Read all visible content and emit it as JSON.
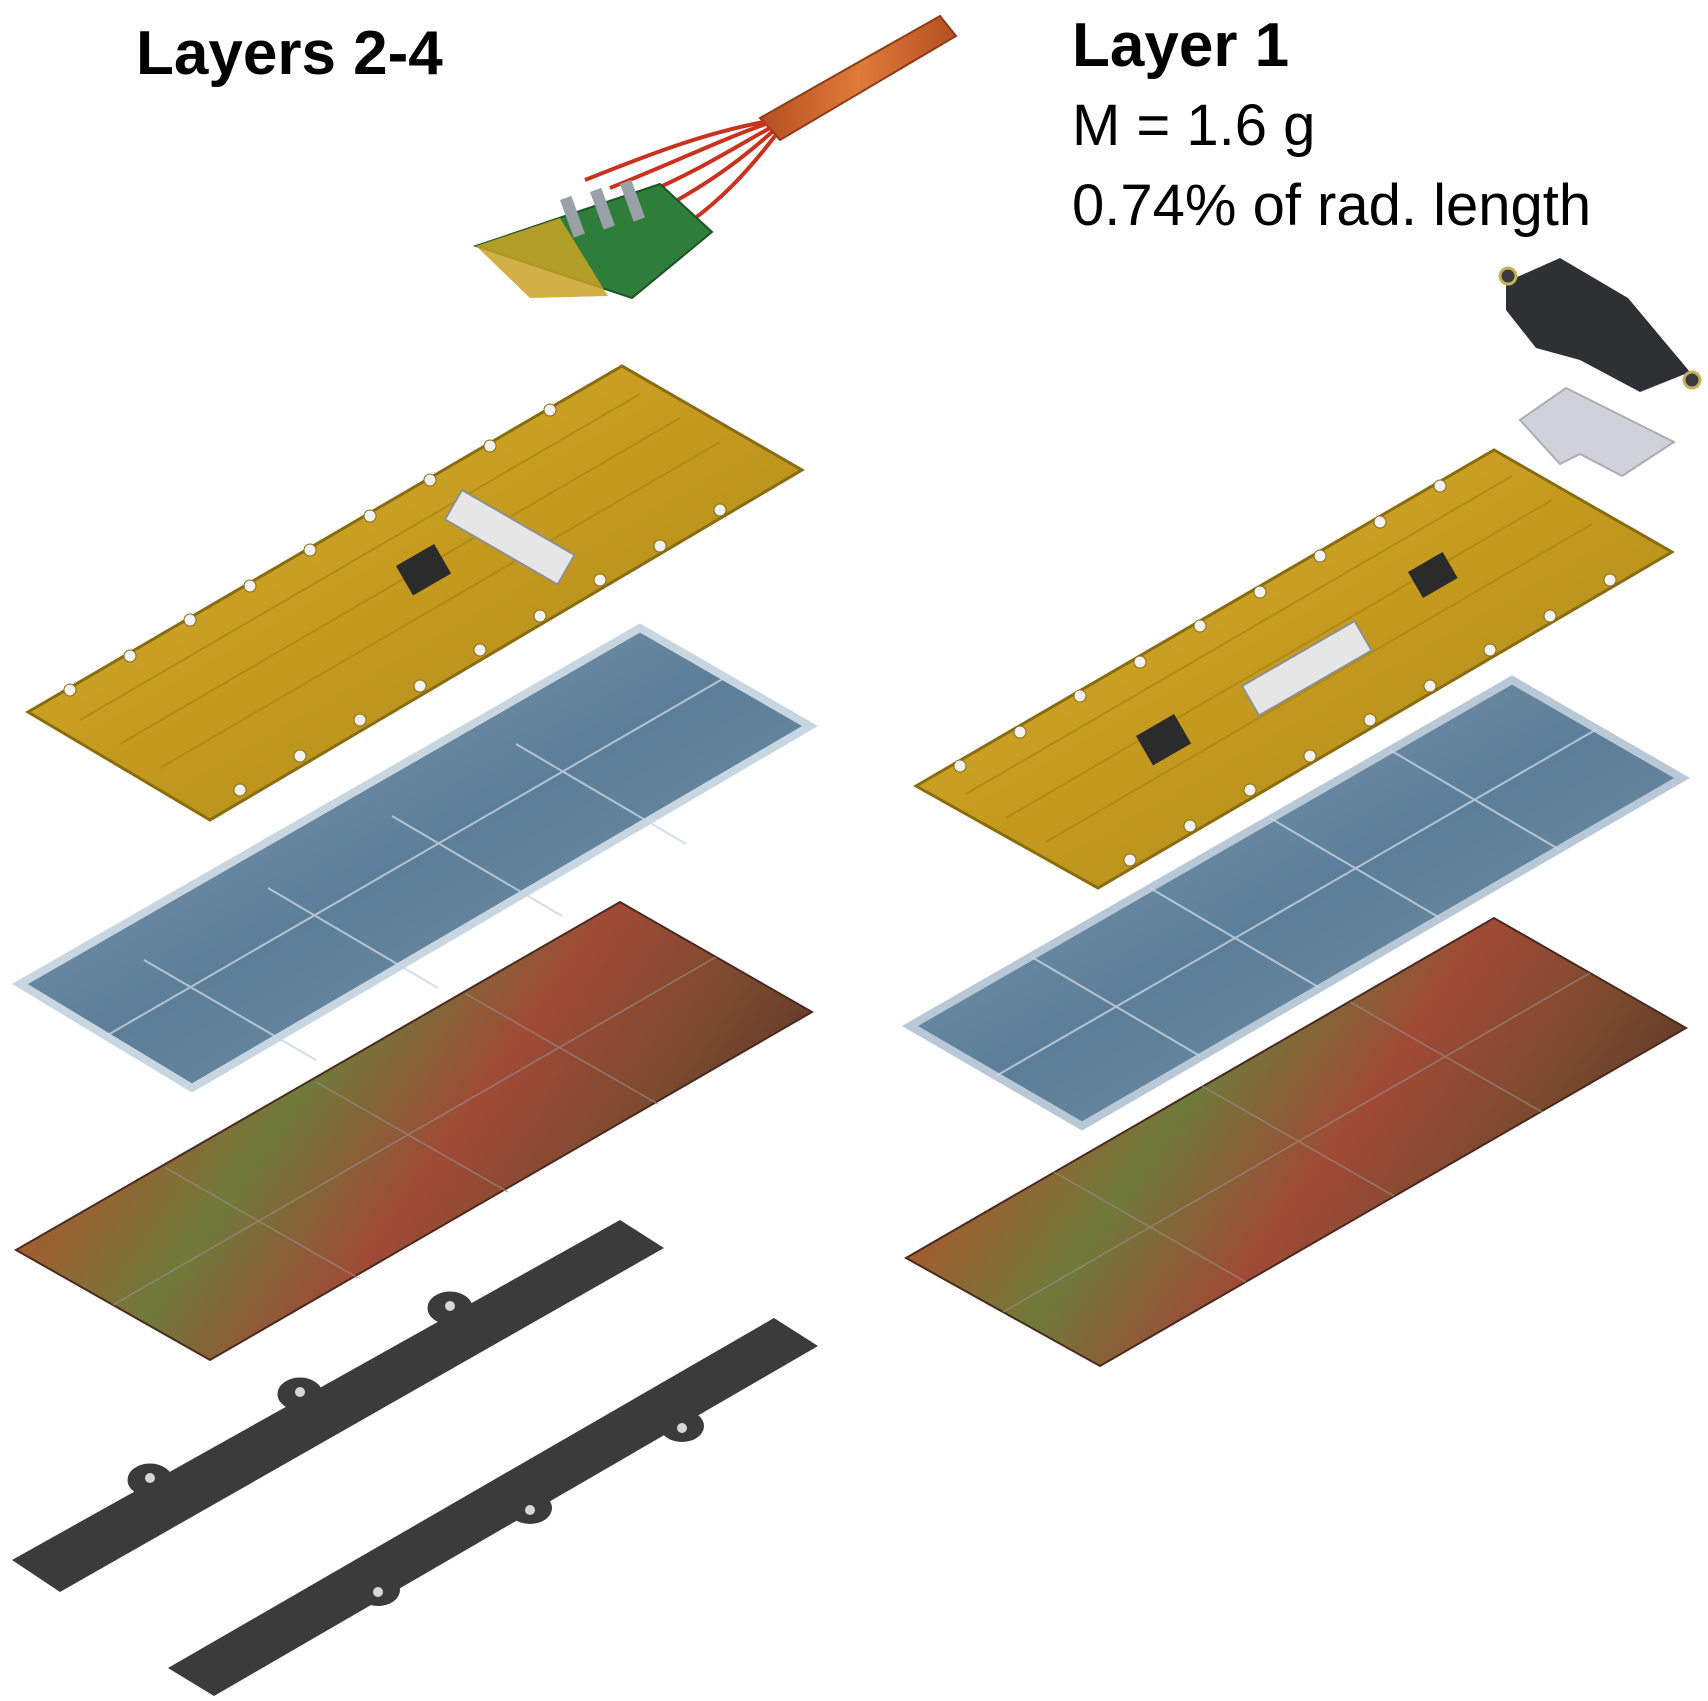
{
  "labels": {
    "left_title": "Layers 2-4",
    "right_title": "Layer 1",
    "right_mass": "M = 1.6 g",
    "right_rad_length": "0.74% of rad. length"
  },
  "colors": {
    "flex_pcb": "#c9a227",
    "flex_pcb_dark": "#8a6c10",
    "glass_plate": "#5f7f97",
    "glass_edge": "#c8d6e2",
    "sensor": "#8a4b2c",
    "support_bar": "#3b3b3b",
    "cable": "#c9652e",
    "connector_green": "#2f7d3a",
    "bridge_grey": "#cfd2d8"
  }
}
